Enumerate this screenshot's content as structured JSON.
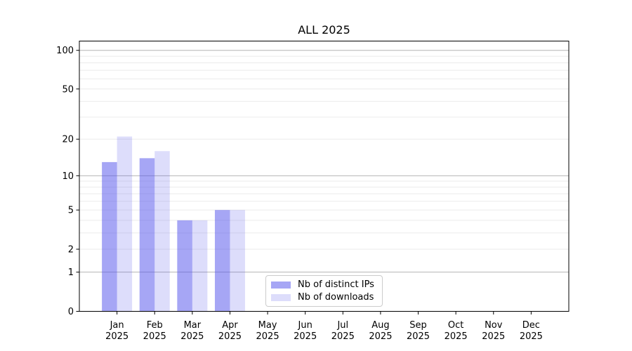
{
  "chart_data": {
    "type": "bar",
    "title": "ALL 2025",
    "x_categories": [
      "Jan",
      "Feb",
      "Mar",
      "Apr",
      "May",
      "Jun",
      "Jul",
      "Aug",
      "Sep",
      "Oct",
      "Nov",
      "Dec"
    ],
    "x_year_label": "2025",
    "series": [
      {
        "name": "Nb of distinct IPs",
        "color": "rgba(85,85,235,0.52)",
        "values": [
          13,
          14,
          4,
          5,
          0,
          0,
          0,
          0,
          0,
          0,
          0,
          0
        ]
      },
      {
        "name": "Nb of downloads",
        "color": "rgba(85,85,235,0.20)",
        "values": [
          21,
          16,
          4,
          5,
          0,
          0,
          0,
          0,
          0,
          0,
          0,
          0
        ]
      }
    ],
    "y_axis": {
      "scale": "log1p",
      "ylim": [
        0,
        118
      ],
      "tick_labels": [
        0,
        1,
        2,
        5,
        10,
        20,
        50,
        100
      ],
      "major_gridlines": [
        1,
        10,
        100
      ],
      "minor_gridlines": [
        2,
        3,
        4,
        5,
        6,
        7,
        8,
        9,
        20,
        30,
        40,
        50,
        60,
        70,
        80,
        90
      ]
    },
    "legend": {
      "position": "lower-center"
    },
    "colors": {
      "grid_minor": "#ebebeb",
      "grid_major": "#b5b5b5",
      "spine": "#000000",
      "text": "#000000",
      "legend_border": "#cccccc",
      "background": "#ffffff"
    }
  }
}
